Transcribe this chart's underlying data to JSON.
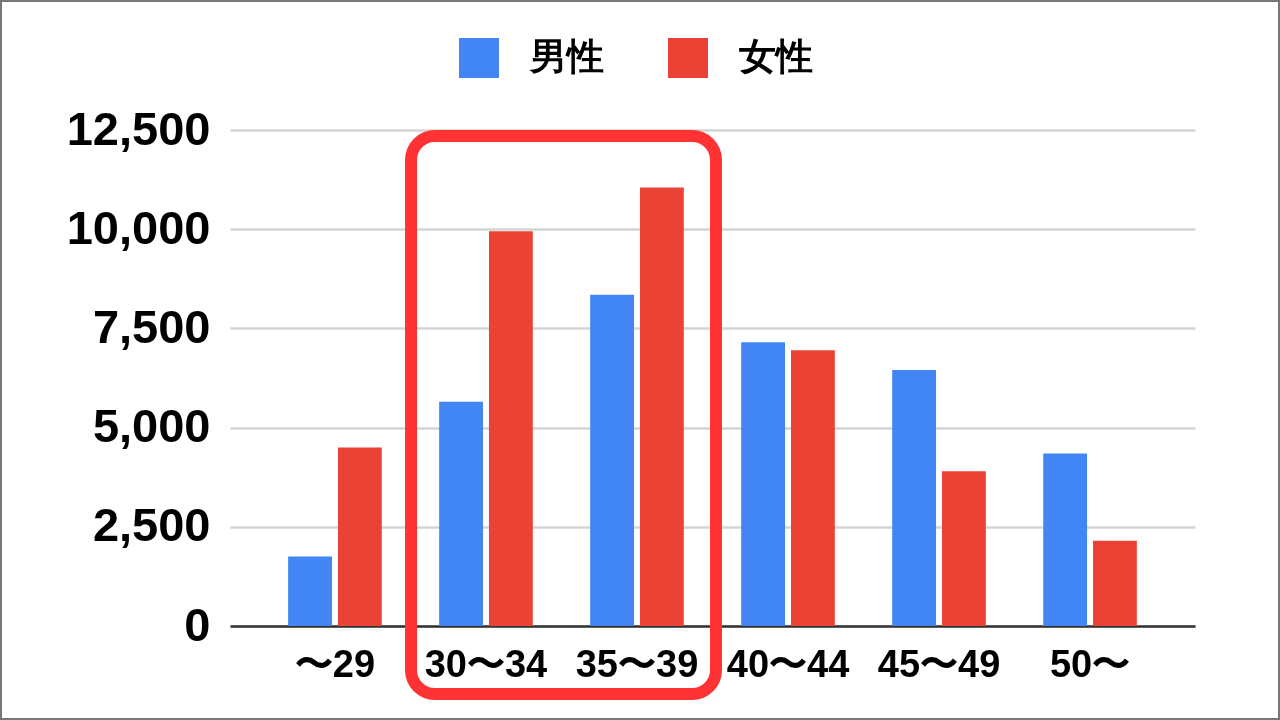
{
  "chart_data": {
    "type": "bar",
    "categories": [
      "〜29",
      "30〜34",
      "35〜39",
      "40〜44",
      "45〜49",
      "50〜"
    ],
    "series": [
      {
        "name": "男性",
        "color": "#4285f4",
        "values": [
          1750,
          5650,
          8350,
          7150,
          6450,
          4350
        ]
      },
      {
        "name": "女性",
        "color": "#ea4335",
        "values": [
          4500,
          9950,
          11050,
          6950,
          3900,
          2150
        ]
      }
    ],
    "ylim": [
      0,
      12500
    ],
    "yticks": [
      0,
      {
        "value": 2500,
        "label": "2,500"
      },
      {
        "value": 5000,
        "label": "5,000"
      },
      {
        "value": 7500,
        "label": "7,500"
      },
      {
        "value": 10000,
        "label": "10,000"
      },
      {
        "value": 12500,
        "label": "12,500"
      }
    ],
    "grid": "y",
    "legend": "top"
  }
}
